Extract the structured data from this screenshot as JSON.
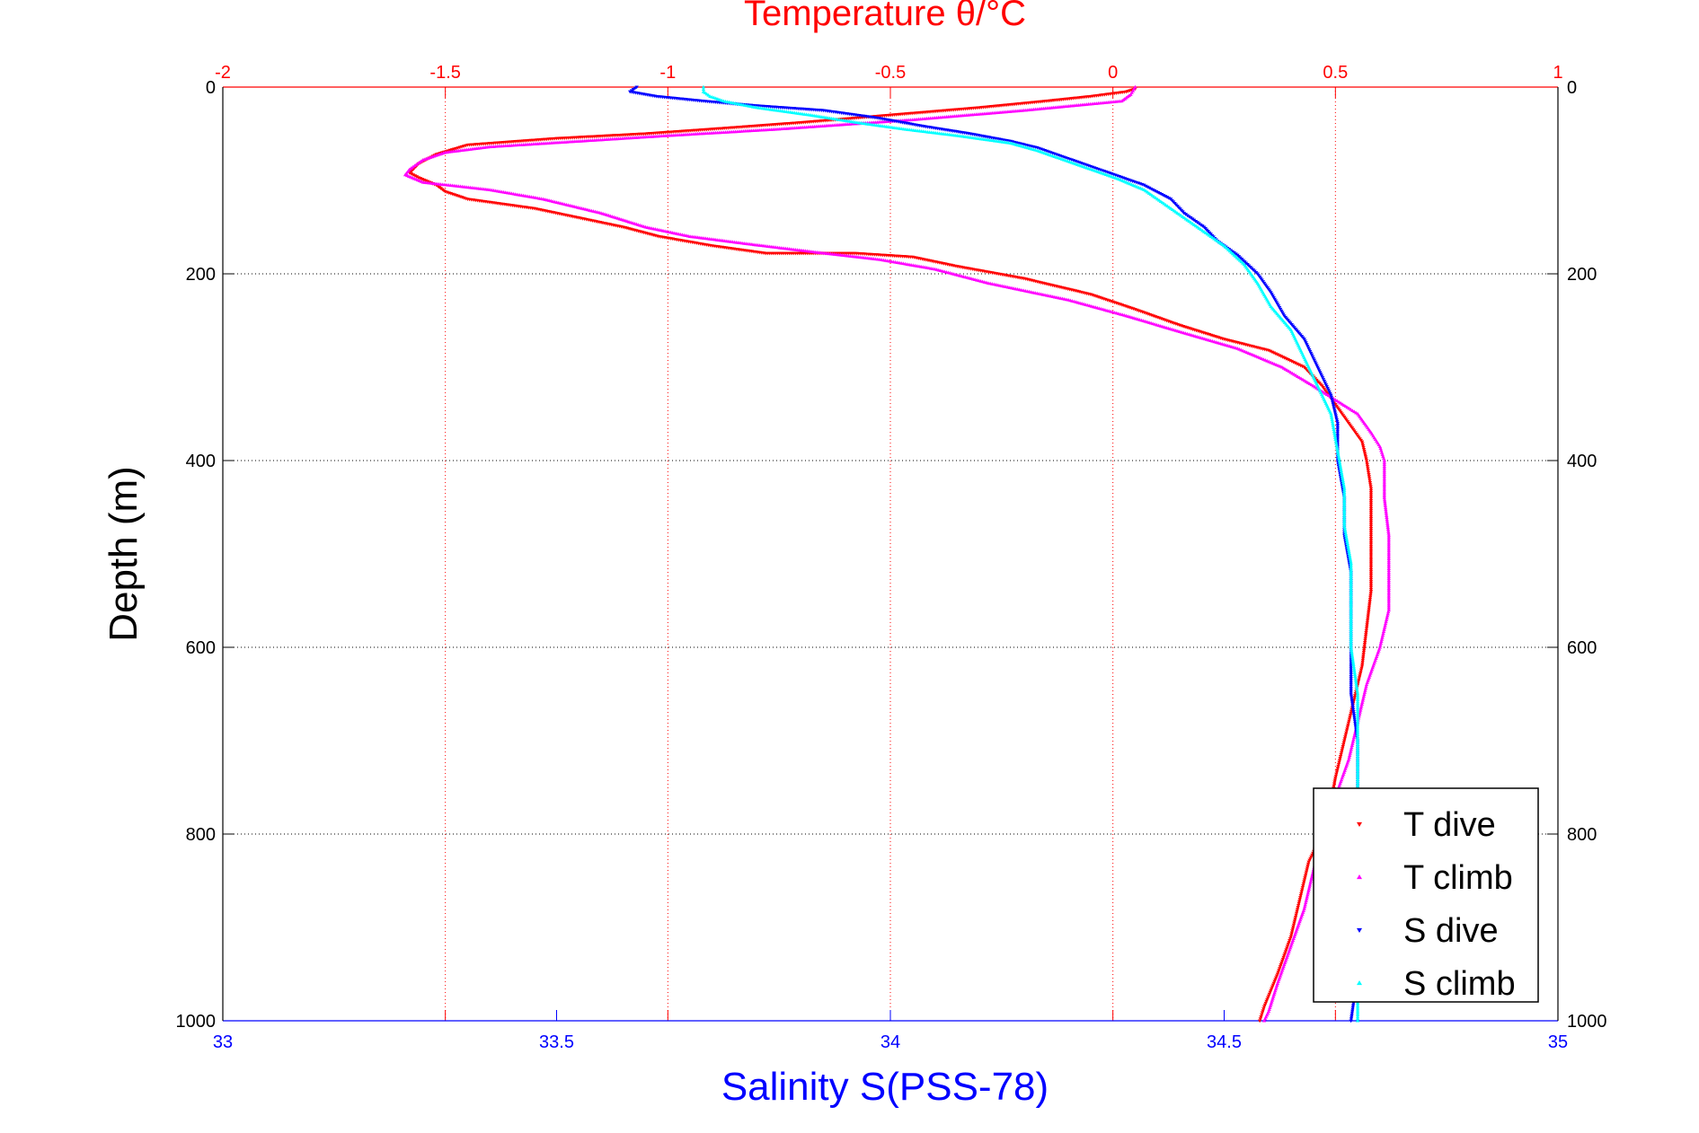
{
  "chart_data": {
    "type": "scatter",
    "title": "Temperature θ/°C",
    "top_axis": {
      "label": "Temperature θ/°C",
      "range": [
        -2,
        1
      ],
      "ticks": [
        -2,
        -1.5,
        -1,
        -0.5,
        0,
        0.5,
        1
      ],
      "tick_labels": [
        "-2",
        "-1.5",
        "-1",
        "-0.5",
        "0",
        "0.5",
        "1"
      ],
      "color": "#ff0000"
    },
    "bottom_axis": {
      "label": "Salinity S(PSS-78)",
      "range": [
        33,
        35
      ],
      "ticks": [
        33,
        33.5,
        34,
        34.5,
        35
      ],
      "tick_labels": [
        "33",
        "33.5",
        "34",
        "34.5",
        "35"
      ],
      "color": "#0000ff"
    },
    "y_axis": {
      "label": "Depth (m)",
      "range": [
        0,
        1000
      ],
      "inverted": true,
      "ticks": [
        0,
        200,
        400,
        600,
        800,
        1000
      ],
      "tick_labels": [
        "0",
        "200",
        "400",
        "600",
        "800",
        "1000"
      ]
    },
    "grid": true,
    "legend_position": "bottom-right",
    "series": [
      {
        "name": "T dive",
        "axis": "temperature",
        "marker": "down-triangle",
        "color": "#ff0000",
        "points": [
          [
            0.05,
            2
          ],
          [
            0.03,
            5
          ],
          [
            -0.05,
            10
          ],
          [
            -0.15,
            15
          ],
          [
            -0.3,
            22
          ],
          [
            -0.5,
            30
          ],
          [
            -0.7,
            38
          ],
          [
            -0.9,
            45
          ],
          [
            -1.05,
            50
          ],
          [
            -1.25,
            55
          ],
          [
            -1.45,
            62
          ],
          [
            -1.52,
            72
          ],
          [
            -1.56,
            82
          ],
          [
            -1.58,
            92
          ],
          [
            -1.56,
            97
          ],
          [
            -1.52,
            105
          ],
          [
            -1.5,
            112
          ],
          [
            -1.45,
            120
          ],
          [
            -1.3,
            130
          ],
          [
            -1.2,
            140
          ],
          [
            -1.1,
            150
          ],
          [
            -1.02,
            160
          ],
          [
            -0.9,
            170
          ],
          [
            -0.78,
            178
          ],
          [
            -0.58,
            178
          ],
          [
            -0.45,
            182
          ],
          [
            -0.35,
            192
          ],
          [
            -0.2,
            205
          ],
          [
            -0.05,
            222
          ],
          [
            0.05,
            238
          ],
          [
            0.15,
            255
          ],
          [
            0.25,
            270
          ],
          [
            0.35,
            282
          ],
          [
            0.43,
            300
          ],
          [
            0.47,
            320
          ],
          [
            0.5,
            340
          ],
          [
            0.53,
            360
          ],
          [
            0.56,
            380
          ],
          [
            0.57,
            400
          ],
          [
            0.58,
            430
          ],
          [
            0.58,
            460
          ],
          [
            0.58,
            500
          ],
          [
            0.58,
            540
          ],
          [
            0.57,
            580
          ],
          [
            0.56,
            620
          ],
          [
            0.54,
            660
          ],
          [
            0.52,
            700
          ],
          [
            0.5,
            740
          ],
          [
            0.48,
            790
          ],
          [
            0.44,
            830
          ],
          [
            0.42,
            870
          ],
          [
            0.4,
            910
          ],
          [
            0.37,
            950
          ],
          [
            0.34,
            985
          ],
          [
            0.33,
            1000
          ]
        ]
      },
      {
        "name": "T climb",
        "axis": "temperature",
        "marker": "up-triangle",
        "color": "#ff00ff",
        "points": [
          [
            0.05,
            0
          ],
          [
            0.04,
            8
          ],
          [
            0.02,
            15
          ],
          [
            -0.2,
            25
          ],
          [
            -0.45,
            35
          ],
          [
            -0.75,
            45
          ],
          [
            -1.0,
            52
          ],
          [
            -1.2,
            58
          ],
          [
            -1.4,
            64
          ],
          [
            -1.5,
            70
          ],
          [
            -1.55,
            78
          ],
          [
            -1.58,
            88
          ],
          [
            -1.59,
            94
          ],
          [
            -1.55,
            102
          ],
          [
            -1.4,
            110
          ],
          [
            -1.28,
            120
          ],
          [
            -1.15,
            135
          ],
          [
            -1.05,
            150
          ],
          [
            -0.95,
            160
          ],
          [
            -0.82,
            168
          ],
          [
            -0.7,
            175
          ],
          [
            -0.52,
            185
          ],
          [
            -0.4,
            195
          ],
          [
            -0.28,
            210
          ],
          [
            -0.1,
            228
          ],
          [
            0.03,
            245
          ],
          [
            0.15,
            262
          ],
          [
            0.28,
            280
          ],
          [
            0.38,
            300
          ],
          [
            0.45,
            320
          ],
          [
            0.5,
            335
          ],
          [
            0.55,
            350
          ],
          [
            0.58,
            370
          ],
          [
            0.6,
            385
          ],
          [
            0.61,
            400
          ],
          [
            0.61,
            440
          ],
          [
            0.62,
            480
          ],
          [
            0.62,
            520
          ],
          [
            0.62,
            560
          ],
          [
            0.6,
            600
          ],
          [
            0.57,
            640
          ],
          [
            0.55,
            680
          ],
          [
            0.53,
            720
          ],
          [
            0.5,
            760
          ],
          [
            0.47,
            800
          ],
          [
            0.45,
            840
          ],
          [
            0.43,
            880
          ],
          [
            0.4,
            920
          ],
          [
            0.37,
            960
          ],
          [
            0.35,
            990
          ],
          [
            0.34,
            1000
          ]
        ]
      },
      {
        "name": "S dive",
        "axis": "salinity",
        "marker": "down-triangle",
        "color": "#0000ff",
        "points": [
          [
            33.62,
            0
          ],
          [
            33.61,
            5
          ],
          [
            33.65,
            10
          ],
          [
            33.72,
            15
          ],
          [
            33.8,
            20
          ],
          [
            33.9,
            25
          ],
          [
            33.98,
            33
          ],
          [
            34.05,
            42
          ],
          [
            34.12,
            50
          ],
          [
            34.18,
            58
          ],
          [
            34.22,
            65
          ],
          [
            34.26,
            75
          ],
          [
            34.3,
            85
          ],
          [
            34.34,
            95
          ],
          [
            34.38,
            105
          ],
          [
            34.42,
            120
          ],
          [
            34.44,
            135
          ],
          [
            34.47,
            150
          ],
          [
            34.49,
            165
          ],
          [
            34.52,
            180
          ],
          [
            34.55,
            200
          ],
          [
            34.57,
            220
          ],
          [
            34.59,
            245
          ],
          [
            34.62,
            270
          ],
          [
            34.64,
            300
          ],
          [
            34.66,
            330
          ],
          [
            34.67,
            360
          ],
          [
            34.67,
            400
          ],
          [
            34.68,
            440
          ],
          [
            34.68,
            480
          ],
          [
            34.69,
            520
          ],
          [
            34.69,
            560
          ],
          [
            34.69,
            600
          ],
          [
            34.69,
            650
          ],
          [
            34.7,
            700
          ],
          [
            34.7,
            750
          ],
          [
            34.7,
            800
          ],
          [
            34.7,
            850
          ],
          [
            34.7,
            900
          ],
          [
            34.7,
            950
          ],
          [
            34.69,
            1000
          ]
        ]
      },
      {
        "name": "S climb",
        "axis": "salinity",
        "marker": "up-triangle",
        "color": "#00ffff",
        "points": [
          [
            33.72,
            0
          ],
          [
            33.72,
            5
          ],
          [
            33.73,
            10
          ],
          [
            33.75,
            15
          ],
          [
            33.8,
            22
          ],
          [
            33.88,
            30
          ],
          [
            33.95,
            38
          ],
          [
            34.02,
            45
          ],
          [
            34.1,
            52
          ],
          [
            34.18,
            60
          ],
          [
            34.22,
            68
          ],
          [
            34.26,
            78
          ],
          [
            34.3,
            88
          ],
          [
            34.34,
            98
          ],
          [
            34.38,
            110
          ],
          [
            34.41,
            125
          ],
          [
            34.44,
            140
          ],
          [
            34.47,
            155
          ],
          [
            34.5,
            170
          ],
          [
            34.53,
            190
          ],
          [
            34.55,
            210
          ],
          [
            34.57,
            235
          ],
          [
            34.6,
            260
          ],
          [
            34.62,
            290
          ],
          [
            34.64,
            320
          ],
          [
            34.66,
            350
          ],
          [
            34.67,
            390
          ],
          [
            34.68,
            430
          ],
          [
            34.68,
            470
          ],
          [
            34.69,
            510
          ],
          [
            34.69,
            550
          ],
          [
            34.69,
            600
          ],
          [
            34.7,
            650
          ],
          [
            34.7,
            700
          ],
          [
            34.7,
            750
          ],
          [
            34.7,
            800
          ],
          [
            34.7,
            850
          ],
          [
            34.7,
            900
          ],
          [
            34.7,
            950
          ],
          [
            34.7,
            1000
          ]
        ]
      }
    ]
  }
}
